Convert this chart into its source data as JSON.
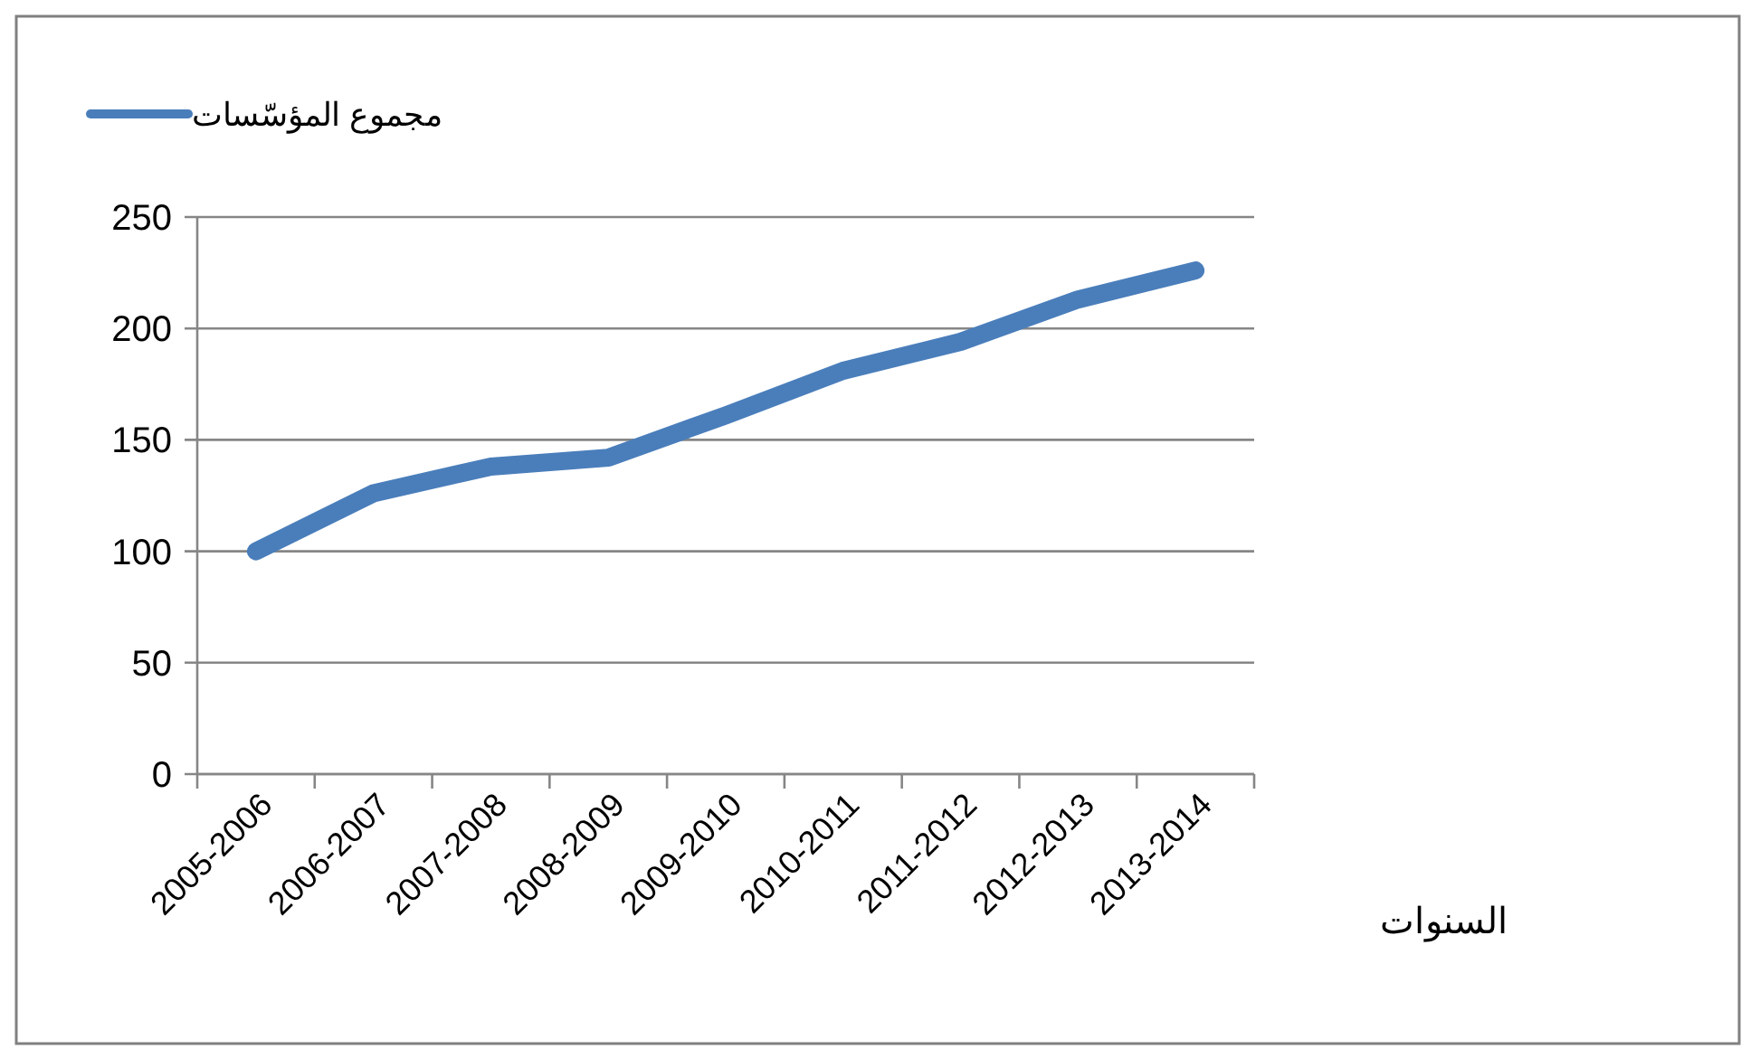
{
  "chart_data": {
    "type": "line",
    "xlabel": "السنوات",
    "categories": [
      "2005-2006",
      "2006-2007",
      "2007-2008",
      "2008-2009",
      "2009-2010",
      "2010-2011",
      "2011-2012",
      "2012-2013",
      "2013-2014"
    ],
    "series": [
      {
        "name": "مجموع المؤسّسات",
        "color": "#4a7ebb",
        "values": [
          100,
          126,
          138,
          142,
          161,
          181,
          194,
          213,
          226
        ]
      }
    ],
    "ylim": [
      0,
      250
    ],
    "yticks": [
      0,
      50,
      100,
      150,
      200,
      250
    ],
    "grid": "y",
    "legend": "top left",
    "marker": "none",
    "line_style": "solid"
  }
}
